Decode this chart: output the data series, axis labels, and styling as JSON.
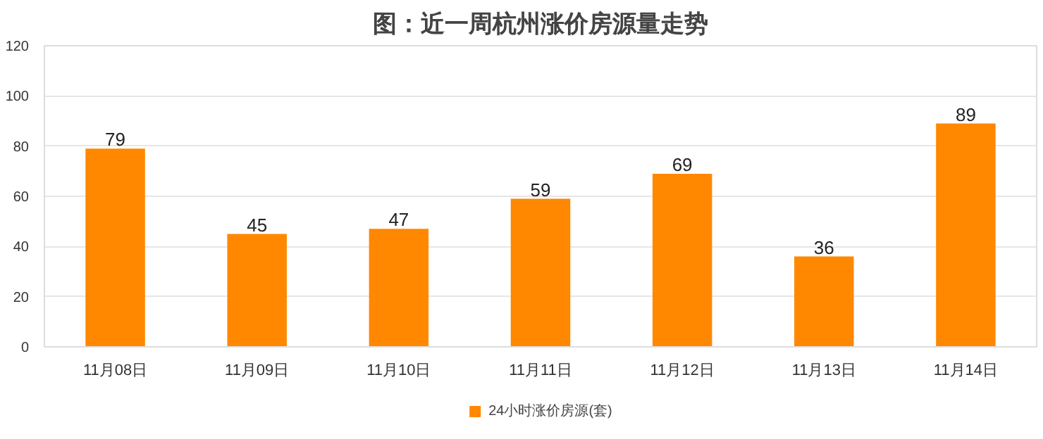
{
  "chart_data": {
    "type": "bar",
    "title": "图：近一周杭州涨价房源量走势",
    "categories": [
      "11月08日",
      "11月09日",
      "11月10日",
      "11月11日",
      "11月12日",
      "11月13日",
      "11月14日"
    ],
    "series": [
      {
        "name": "24小时涨价房源(套)",
        "color": "#ff8800",
        "values": [
          79,
          45,
          47,
          59,
          69,
          36,
          89
        ]
      }
    ],
    "ylim": [
      0,
      120
    ],
    "yticks": [
      0,
      20,
      40,
      60,
      80,
      100,
      120
    ],
    "grid": "y",
    "legend": "bottom",
    "data_labels": true
  }
}
